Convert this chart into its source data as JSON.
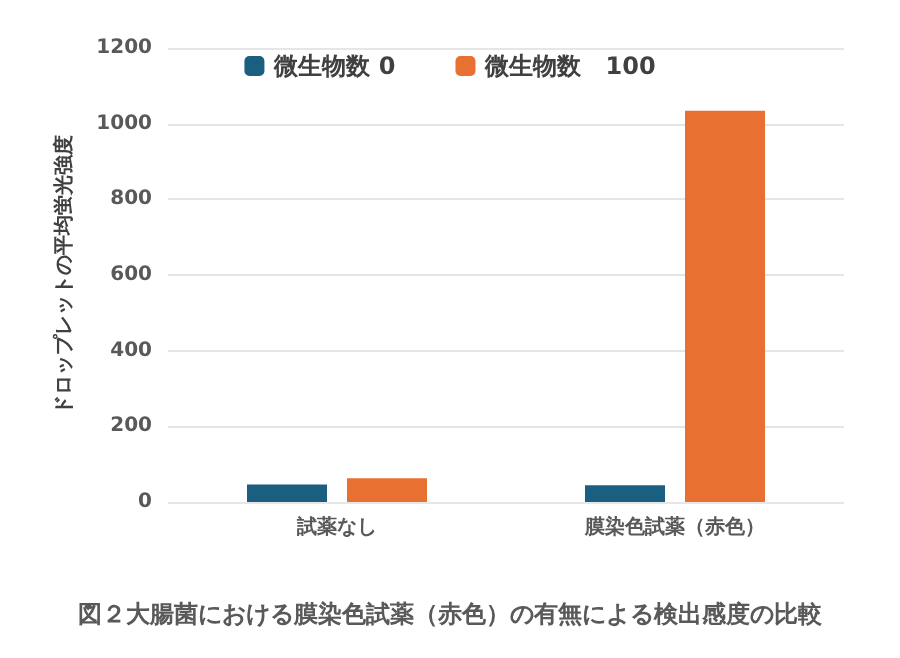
{
  "chart_data": {
    "type": "bar",
    "ylabel": "ドロップレットの平均蛍光強度",
    "categories": [
      "試薬なし",
      "膜染色試薬（赤色）"
    ],
    "series": [
      {
        "name": "微生物数 0",
        "color": "#1a5e80",
        "values": [
          46,
          44
        ]
      },
      {
        "name": "微生物数　100",
        "color": "#e87030",
        "values": [
          63,
          1034
        ]
      }
    ],
    "ylim": [
      0,
      1200
    ],
    "yticks": [
      0,
      200,
      400,
      600,
      800,
      1000,
      1200
    ],
    "grid": "y",
    "legend": "top",
    "annotations": [
      "図２大腸菌における膜染色試薬（赤色）の有無による検出感度の比較"
    ]
  }
}
